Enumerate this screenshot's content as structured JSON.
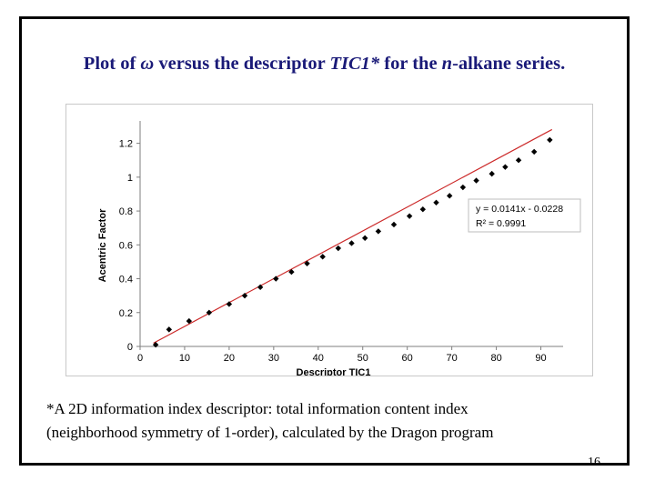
{
  "title": {
    "prefix": "Plot of ",
    "omega": "ω",
    "mid": " versus the descriptor ",
    "descriptor": "TIC1*",
    "mid2": " for the ",
    "n": "n",
    "suffix": "-alkane series."
  },
  "footnote": {
    "line1": "*A 2D information index descriptor: total information content index",
    "line2": "(neighborhood symmetry of 1-order), calculated by the Dragon program"
  },
  "page_number": "16",
  "chart_data": {
    "type": "scatter",
    "xlabel": "Descriptor TIC1",
    "ylabel": "Acentric Factor",
    "xlim": [
      0,
      95
    ],
    "ylim": [
      0,
      1.3
    ],
    "xticks": [
      0,
      10,
      20,
      30,
      40,
      50,
      60,
      70,
      80,
      90
    ],
    "yticks": [
      0,
      0.2,
      0.4,
      0.6,
      0.8,
      1,
      1.2
    ],
    "grid": false,
    "legend_position": "bottom-right",
    "points": {
      "x": [
        3.5,
        6.5,
        11,
        15.5,
        20,
        23.5,
        27,
        30.5,
        34,
        37.5,
        41,
        44.5,
        47.5,
        50.5,
        53.5,
        57,
        60.5,
        63.5,
        66.5,
        69.5,
        72.5,
        75.5,
        79,
        82,
        85,
        88.5,
        92
      ],
      "y": [
        0.01,
        0.1,
        0.15,
        0.2,
        0.25,
        0.3,
        0.35,
        0.4,
        0.44,
        0.49,
        0.53,
        0.58,
        0.61,
        0.64,
        0.68,
        0.72,
        0.77,
        0.81,
        0.85,
        0.89,
        0.94,
        0.98,
        1.02,
        1.06,
        1.1,
        1.15,
        1.22
      ]
    },
    "fit": {
      "name": "Linear fit",
      "slope": 0.0141,
      "intercept": -0.0228,
      "x_range": [
        3,
        92.5
      ],
      "color": "#cc2a2a",
      "equation_label": "y = 0.0141x - 0.0228",
      "r2_label": "R² = 0.9991"
    },
    "marker_color": "#000000"
  }
}
